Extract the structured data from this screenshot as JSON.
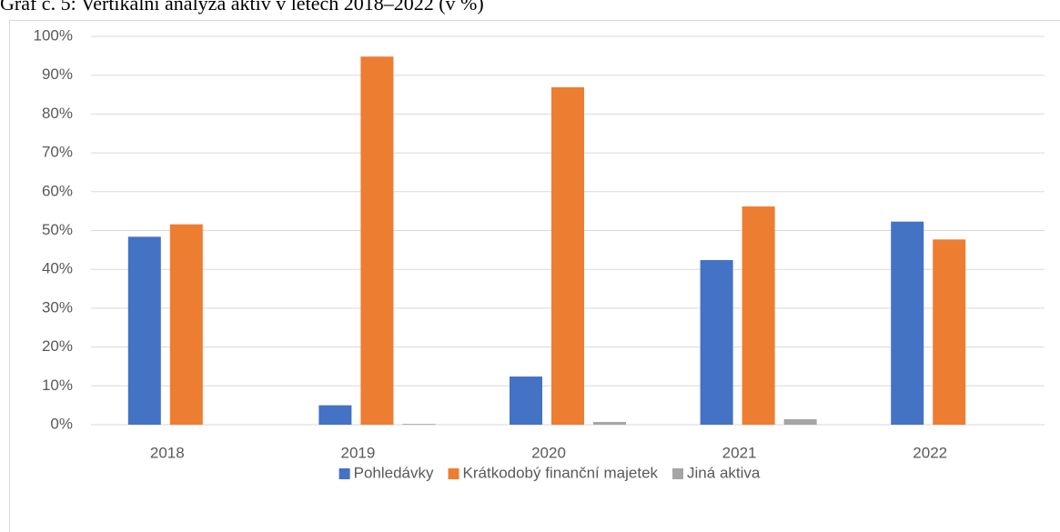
{
  "chart_data": {
    "type": "bar",
    "title": "Graf č. 5: Vertikální analýza aktiv v letech 2018–2022 (v %)",
    "categories": [
      "2018",
      "2019",
      "2020",
      "2021",
      "2022"
    ],
    "series": [
      {
        "name": "Pohledávky",
        "color": "#4472c4",
        "values": [
          48.4,
          5.0,
          12.4,
          42.4,
          52.3
        ]
      },
      {
        "name": "Krátkodobý finanční majetek",
        "color": "#ed7d31",
        "values": [
          51.6,
          94.8,
          86.9,
          56.2,
          47.7
        ]
      },
      {
        "name": "Jiná aktiva",
        "color": "#a5a5a5",
        "values": [
          0,
          0.2,
          0.7,
          1.4,
          0
        ]
      }
    ],
    "ylim": [
      0,
      100
    ],
    "yticks": [
      {
        "value": 0,
        "label": "0%"
      },
      {
        "value": 10,
        "label": "10%"
      },
      {
        "value": 20,
        "label": "20%"
      },
      {
        "value": 30,
        "label": "30%"
      },
      {
        "value": 40,
        "label": "40%"
      },
      {
        "value": 50,
        "label": "50%"
      },
      {
        "value": 60,
        "label": "60%"
      },
      {
        "value": 70,
        "label": "70%"
      },
      {
        "value": 80,
        "label": "80%"
      },
      {
        "value": 90,
        "label": "90%"
      },
      {
        "value": 100,
        "label": "100%"
      }
    ],
    "grid": true,
    "legend": "bottom"
  }
}
